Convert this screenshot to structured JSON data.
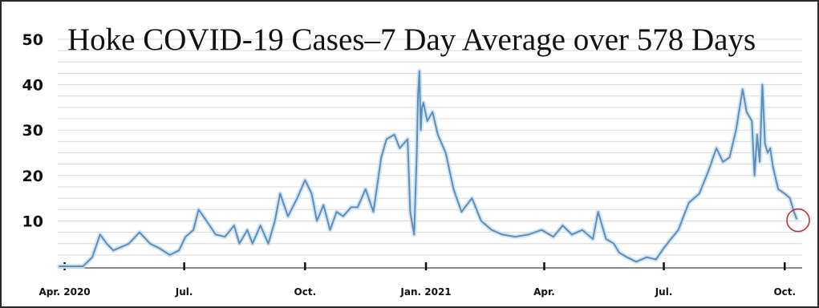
{
  "chart_data": {
    "type": "line",
    "title": "Hoke COVID-19 Cases–7 Day Average over 578 Days",
    "xlabel": "",
    "ylabel": "",
    "ylim": [
      0,
      50
    ],
    "yticks": [
      "10",
      "20",
      "30",
      "40",
      "50"
    ],
    "xticks": [
      {
        "label": "Apr. 2020",
        "date": "2020-04-01"
      },
      {
        "label": "Jul.",
        "date": "2020-07-01"
      },
      {
        "label": "Oct.",
        "date": "2020-10-01"
      },
      {
        "label": "Jan. 2021",
        "date": "2021-01-01"
      },
      {
        "label": "Apr.",
        "date": "2021-04-01"
      },
      {
        "label": "Jul.",
        "date": "2021-07-01"
      },
      {
        "label": "Oct.",
        "date": "2021-10-01"
      }
    ],
    "grid": true,
    "highlight_last_point": true,
    "colors": {
      "line": "#5b8fb9",
      "glow": "#cfe2f3",
      "grid": "#d8d8d8",
      "marker": "#c0303a",
      "text": "#111111",
      "border": "#2a2a2a"
    },
    "series": [
      {
        "x": [
          "2020-03-28",
          "2020-04-15",
          "2020-04-22",
          "2020-04-28",
          "2020-05-03",
          "2020-05-08",
          "2020-05-12",
          "2020-05-20",
          "2020-05-28",
          "2020-06-05",
          "2020-06-12",
          "2020-06-20",
          "2020-06-27",
          "2020-07-02",
          "2020-07-08",
          "2020-07-12",
          "2020-07-18",
          "2020-07-25",
          "2020-08-01",
          "2020-08-08",
          "2020-08-12",
          "2020-08-18",
          "2020-08-22",
          "2020-08-28",
          "2020-09-03",
          "2020-09-08",
          "2020-09-12",
          "2020-09-18",
          "2020-09-25",
          "2020-10-01",
          "2020-10-06",
          "2020-10-10",
          "2020-10-15",
          "2020-10-20",
          "2020-10-25",
          "2020-10-30",
          "2020-11-05",
          "2020-11-10",
          "2020-11-16",
          "2020-11-22",
          "2020-11-28",
          "2020-12-02",
          "2020-12-08",
          "2020-12-12",
          "2020-12-18",
          "2020-12-20",
          "2020-12-23",
          "2020-12-25",
          "2020-12-26",
          "2020-12-27",
          "2020-12-28",
          "2020-12-29",
          "2020-12-30",
          "2021-01-02",
          "2021-01-06",
          "2021-01-10",
          "2021-01-16",
          "2021-01-22",
          "2021-01-28",
          "2021-02-05",
          "2021-02-12",
          "2021-02-20",
          "2021-02-28",
          "2021-03-10",
          "2021-03-20",
          "2021-03-30",
          "2021-04-08",
          "2021-04-15",
          "2021-04-22",
          "2021-04-30",
          "2021-05-08",
          "2021-05-12",
          "2021-05-18",
          "2021-05-24",
          "2021-05-28",
          "2021-06-03",
          "2021-06-10",
          "2021-06-18",
          "2021-06-25",
          "2021-07-01",
          "2021-07-05",
          "2021-07-12",
          "2021-07-20",
          "2021-07-28",
          "2021-08-04",
          "2021-08-10",
          "2021-08-15",
          "2021-08-20",
          "2021-08-25",
          "2021-08-30",
          "2021-09-02",
          "2021-09-06",
          "2021-09-08",
          "2021-09-10",
          "2021-09-12",
          "2021-09-14",
          "2021-09-16",
          "2021-09-18",
          "2021-09-20",
          "2021-09-22",
          "2021-09-26",
          "2021-10-01",
          "2021-10-05",
          "2021-10-08",
          "2021-10-10"
        ],
        "y": [
          0,
          0,
          2,
          7,
          5,
          3.5,
          4,
          5,
          7.5,
          5,
          4,
          2.5,
          3.5,
          6.5,
          8,
          12.5,
          10,
          7,
          6.5,
          9,
          5,
          8,
          5,
          9,
          5,
          10,
          16,
          11,
          15,
          19,
          16,
          10,
          13.5,
          8,
          12,
          11,
          13,
          13,
          17,
          12,
          24,
          28,
          29,
          26,
          28,
          12,
          7,
          25,
          38,
          43,
          30,
          35,
          36,
          32,
          34,
          29,
          25,
          17,
          12,
          15,
          10,
          8,
          7,
          6.5,
          7,
          8,
          6.5,
          9,
          7,
          8,
          6,
          12,
          6,
          5,
          3,
          2,
          1,
          2,
          1.5,
          4,
          5.5,
          8,
          14,
          16,
          21,
          26,
          23,
          24,
          30,
          39,
          34,
          32,
          20,
          29,
          23,
          40,
          27,
          25,
          26,
          22,
          17,
          16,
          15,
          12,
          10.5
        ]
      }
    ]
  }
}
